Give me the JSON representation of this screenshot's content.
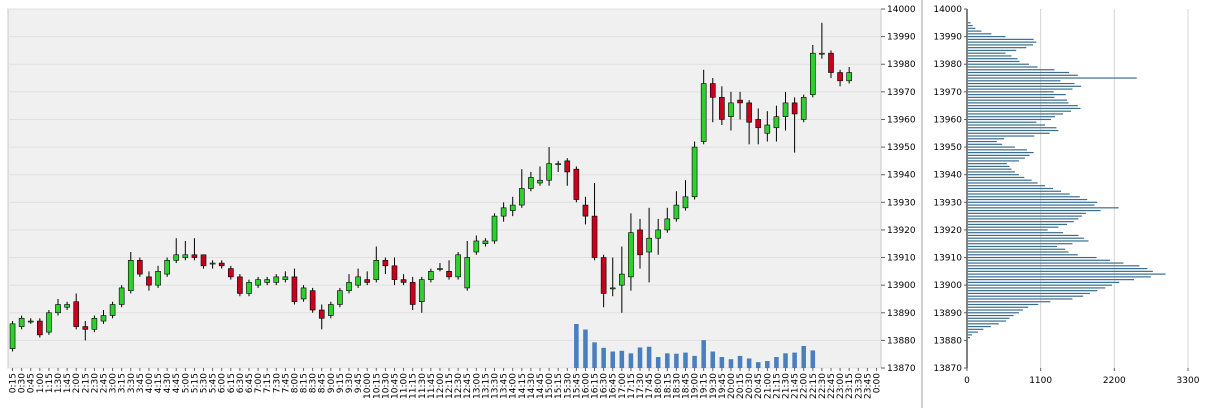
{
  "colors": {
    "up": "#2fcf2f",
    "down": "#c8001e",
    "volume": "#4a7fbf",
    "profile": "#3a6e8f",
    "plot_bg": "#f0f0f0",
    "grid": "#e0e0e0"
  },
  "chart_data": [
    {
      "type": "candlestick",
      "interval_minutes": 15,
      "ylim": [
        13870,
        14000
      ],
      "y_ticks": [
        13870,
        13880,
        13890,
        13900,
        13910,
        13920,
        13930,
        13940,
        13950,
        13960,
        13970,
        13980,
        13990,
        14000
      ],
      "x_tick_labels": [
        "0:15",
        "0:30",
        "0:45",
        "1:00",
        "1:15",
        "1:30",
        "1:45",
        "2:00",
        "2:15",
        "2:30",
        "2:45",
        "3:00",
        "3:15",
        "3:30",
        "3:45",
        "4:00",
        "4:15",
        "4:30",
        "4:45",
        "5:00",
        "5:15",
        "5:30",
        "5:45",
        "6:00",
        "6:15",
        "6:30",
        "6:45",
        "7:00",
        "7:15",
        "7:30",
        "7:45",
        "8:00",
        "8:15",
        "8:30",
        "8:45",
        "9:00",
        "9:15",
        "9:30",
        "9:45",
        "10:00",
        "10:15",
        "10:30",
        "10:45",
        "11:00",
        "11:15",
        "11:30",
        "11:45",
        "12:00",
        "12:15",
        "12:30",
        "12:45",
        "13:00",
        "13:15",
        "13:30",
        "13:45",
        "14:00",
        "14:15",
        "14:30",
        "14:45",
        "15:00",
        "15:15",
        "15:30",
        "15:45",
        "16:00",
        "16:15",
        "16:30",
        "16:45",
        "17:00",
        "17:15",
        "17:30",
        "17:45",
        "18:00",
        "18:15",
        "18:30",
        "18:45",
        "19:00",
        "19:15",
        "19:30",
        "19:45",
        "20:00",
        "20:15",
        "20:30",
        "20:45",
        "21:00",
        "21:15",
        "21:30",
        "21:45",
        "22:00",
        "22:15",
        "22:30",
        "22:45",
        "23:00",
        "23:15",
        "23:30",
        "23:45",
        "0:00"
      ],
      "candles": [
        {
          "t": "0:15",
          "o": 13877,
          "h": 13887,
          "l": 13876,
          "c": 13886,
          "v": 0
        },
        {
          "t": "0:30",
          "o": 13885,
          "h": 13889,
          "l": 13884,
          "c": 13888,
          "v": 0
        },
        {
          "t": "0:45",
          "o": 13887,
          "h": 13888,
          "l": 13886,
          "c": 13887,
          "v": 0
        },
        {
          "t": "1:00",
          "o": 13887,
          "h": 13888,
          "l": 13881,
          "c": 13882,
          "v": 0
        },
        {
          "t": "1:15",
          "o": 13883,
          "h": 13891,
          "l": 13882,
          "c": 13890,
          "v": 0
        },
        {
          "t": "1:30",
          "o": 13890,
          "h": 13895,
          "l": 13889,
          "c": 13893,
          "v": 0
        },
        {
          "t": "1:45",
          "o": 13892,
          "h": 13894,
          "l": 13891,
          "c": 13893,
          "v": 0
        },
        {
          "t": "2:00",
          "o": 13894,
          "h": 13897,
          "l": 13884,
          "c": 13885,
          "v": 0
        },
        {
          "t": "2:15",
          "o": 13885,
          "h": 13887,
          "l": 13880,
          "c": 13884,
          "v": 0
        },
        {
          "t": "2:30",
          "o": 13884,
          "h": 13889,
          "l": 13883,
          "c": 13888,
          "v": 0
        },
        {
          "t": "2:45",
          "o": 13887,
          "h": 13891,
          "l": 13886,
          "c": 13889,
          "v": 0
        },
        {
          "t": "3:00",
          "o": 13889,
          "h": 13894,
          "l": 13888,
          "c": 13893,
          "v": 0
        },
        {
          "t": "3:15",
          "o": 13893,
          "h": 13900,
          "l": 13892,
          "c": 13899,
          "v": 0
        },
        {
          "t": "3:30",
          "o": 13898,
          "h": 13912,
          "l": 13897,
          "c": 13909,
          "v": 0
        },
        {
          "t": "3:45",
          "o": 13909,
          "h": 13910,
          "l": 13903,
          "c": 13904,
          "v": 0
        },
        {
          "t": "4:00",
          "o": 13903,
          "h": 13905,
          "l": 13898,
          "c": 13900,
          "v": 0
        },
        {
          "t": "4:15",
          "o": 13900,
          "h": 13907,
          "l": 13899,
          "c": 13905,
          "v": 0
        },
        {
          "t": "4:30",
          "o": 13904,
          "h": 13910,
          "l": 13903,
          "c": 13909,
          "v": 0
        },
        {
          "t": "4:45",
          "o": 13909,
          "h": 13917,
          "l": 13908,
          "c": 13911,
          "v": 0
        },
        {
          "t": "5:00",
          "o": 13910,
          "h": 13916,
          "l": 13909,
          "c": 13911,
          "v": 0
        },
        {
          "t": "5:15",
          "o": 13911,
          "h": 13917,
          "l": 13909,
          "c": 13910,
          "v": 0
        },
        {
          "t": "5:30",
          "o": 13911,
          "h": 13911,
          "l": 13906,
          "c": 13907,
          "v": 0
        },
        {
          "t": "5:45",
          "o": 13908,
          "h": 13909,
          "l": 13906,
          "c": 13908,
          "v": 0
        },
        {
          "t": "6:00",
          "o": 13908,
          "h": 13909,
          "l": 13906,
          "c": 13907,
          "v": 0
        },
        {
          "t": "6:15",
          "o": 13906,
          "h": 13907,
          "l": 13902,
          "c": 13903,
          "v": 0
        },
        {
          "t": "6:30",
          "o": 13903,
          "h": 13904,
          "l": 13896,
          "c": 13897,
          "v": 0
        },
        {
          "t": "6:45",
          "o": 13897,
          "h": 13902,
          "l": 13896,
          "c": 13901,
          "v": 0
        },
        {
          "t": "7:00",
          "o": 13900,
          "h": 13903,
          "l": 13899,
          "c": 13902,
          "v": 0
        },
        {
          "t": "7:15",
          "o": 13901,
          "h": 13903,
          "l": 13900,
          "c": 13902,
          "v": 0
        },
        {
          "t": "7:30",
          "o": 13901,
          "h": 13904,
          "l": 13900,
          "c": 13903,
          "v": 0
        },
        {
          "t": "7:45",
          "o": 13902,
          "h": 13905,
          "l": 13901,
          "c": 13903,
          "v": 0
        },
        {
          "t": "8:00",
          "o": 13903,
          "h": 13906,
          "l": 13893,
          "c": 13894,
          "v": 0
        },
        {
          "t": "8:15",
          "o": 13895,
          "h": 13900,
          "l": 13894,
          "c": 13899,
          "v": 0
        },
        {
          "t": "8:30",
          "o": 13898,
          "h": 13899,
          "l": 13890,
          "c": 13891,
          "v": 0
        },
        {
          "t": "8:45",
          "o": 13891,
          "h": 13893,
          "l": 13884,
          "c": 13888,
          "v": 0
        },
        {
          "t": "9:00",
          "o": 13889,
          "h": 13894,
          "l": 13888,
          "c": 13893,
          "v": 0
        },
        {
          "t": "9:15",
          "o": 13893,
          "h": 13899,
          "l": 13892,
          "c": 13898,
          "v": 0
        },
        {
          "t": "9:30",
          "o": 13898,
          "h": 13904,
          "l": 13897,
          "c": 13901,
          "v": 0
        },
        {
          "t": "9:45",
          "o": 13900,
          "h": 13906,
          "l": 13899,
          "c": 13903,
          "v": 0
        },
        {
          "t": "10:00",
          "o": 13902,
          "h": 13905,
          "l": 13900,
          "c": 13901,
          "v": 0
        },
        {
          "t": "10:15",
          "o": 13902,
          "h": 13914,
          "l": 13901,
          "c": 13909,
          "v": 0
        },
        {
          "t": "10:30",
          "o": 13909,
          "h": 13910,
          "l": 13904,
          "c": 13907,
          "v": 0
        },
        {
          "t": "10:45",
          "o": 13907,
          "h": 13910,
          "l": 13900,
          "c": 13902,
          "v": 0
        },
        {
          "t": "11:00",
          "o": 13902,
          "h": 13904,
          "l": 13900,
          "c": 13901,
          "v": 0
        },
        {
          "t": "11:15",
          "o": 13901,
          "h": 13903,
          "l": 13891,
          "c": 13893,
          "v": 0
        },
        {
          "t": "11:30",
          "o": 13894,
          "h": 13903,
          "l": 13890,
          "c": 13902,
          "v": 0
        },
        {
          "t": "11:45",
          "o": 13902,
          "h": 13906,
          "l": 13901,
          "c": 13905,
          "v": 0
        },
        {
          "t": "12:00",
          "o": 13906,
          "h": 13908,
          "l": 13905,
          "c": 13906,
          "v": 0
        },
        {
          "t": "12:15",
          "o": 13905,
          "h": 13909,
          "l": 13902,
          "c": 13903,
          "v": 0
        },
        {
          "t": "12:30",
          "o": 13903,
          "h": 13912,
          "l": 13902,
          "c": 13911,
          "v": 0
        },
        {
          "t": "12:45",
          "o": 13899,
          "h": 13916,
          "l": 13898,
          "c": 13910,
          "v": 0
        },
        {
          "t": "13:00",
          "o": 13912,
          "h": 13918,
          "l": 13911,
          "c": 13916,
          "v": 0
        },
        {
          "t": "13:15",
          "o": 13915,
          "h": 13917,
          "l": 13914,
          "c": 13916,
          "v": 0
        },
        {
          "t": "13:30",
          "o": 13916,
          "h": 13926,
          "l": 13915,
          "c": 13925,
          "v": 0
        },
        {
          "t": "13:45",
          "o": 13925,
          "h": 13930,
          "l": 13923,
          "c": 13928,
          "v": 0
        },
        {
          "t": "14:00",
          "o": 13927,
          "h": 13932,
          "l": 13925,
          "c": 13929,
          "v": 0
        },
        {
          "t": "14:15",
          "o": 13929,
          "h": 13942,
          "l": 13928,
          "c": 13935,
          "v": 0
        },
        {
          "t": "14:30",
          "o": 13935,
          "h": 13941,
          "l": 13934,
          "c": 13939,
          "v": 0
        },
        {
          "t": "14:45",
          "o": 13937,
          "h": 13943,
          "l": 13936,
          "c": 13938,
          "v": 0
        },
        {
          "t": "15:00",
          "o": 13938,
          "h": 13950,
          "l": 13936,
          "c": 13944,
          "v": 0
        },
        {
          "t": "15:15",
          "o": 13944,
          "h": 13945,
          "l": 13941,
          "c": 13944,
          "v": 0
        },
        {
          "t": "15:30",
          "o": 13945,
          "h": 13946,
          "l": 13936,
          "c": 13941,
          "v": 0
        },
        {
          "t": "15:45",
          "o": 13942,
          "h": 13943,
          "l": 13930,
          "c": 13931,
          "v": 1200
        },
        {
          "t": "16:00",
          "o": 13929,
          "h": 13932,
          "l": 13922,
          "c": 13925,
          "v": 1050
        },
        {
          "t": "16:15",
          "o": 13925,
          "h": 13937,
          "l": 13909,
          "c": 13910,
          "v": 700
        },
        {
          "t": "16:30",
          "o": 13910,
          "h": 13911,
          "l": 13892,
          "c": 13897,
          "v": 550
        },
        {
          "t": "16:45",
          "o": 13899,
          "h": 13910,
          "l": 13896,
          "c": 13899,
          "v": 450
        },
        {
          "t": "17:00",
          "o": 13900,
          "h": 13914,
          "l": 13890,
          "c": 13904,
          "v": 470
        },
        {
          "t": "17:15",
          "o": 13903,
          "h": 13926,
          "l": 13898,
          "c": 13919,
          "v": 400
        },
        {
          "t": "17:30",
          "o": 13920,
          "h": 13924,
          "l": 13906,
          "c": 13911,
          "v": 560
        },
        {
          "t": "17:45",
          "o": 13912,
          "h": 13928,
          "l": 13901,
          "c": 13917,
          "v": 580
        },
        {
          "t": "18:00",
          "o": 13917,
          "h": 13924,
          "l": 13911,
          "c": 13920,
          "v": 300
        },
        {
          "t": "18:15",
          "o": 13920,
          "h": 13928,
          "l": 13919,
          "c": 13924,
          "v": 400
        },
        {
          "t": "18:30",
          "o": 13924,
          "h": 13934,
          "l": 13923,
          "c": 13929,
          "v": 390
        },
        {
          "t": "18:45",
          "o": 13928,
          "h": 13938,
          "l": 13927,
          "c": 13932,
          "v": 420
        },
        {
          "t": "19:00",
          "o": 13932,
          "h": 13952,
          "l": 13931,
          "c": 13950,
          "v": 330
        },
        {
          "t": "19:15",
          "o": 13952,
          "h": 13978,
          "l": 13951,
          "c": 13973,
          "v": 760
        },
        {
          "t": "19:30",
          "o": 13973,
          "h": 13975,
          "l": 13959,
          "c": 13968,
          "v": 450
        },
        {
          "t": "19:45",
          "o": 13968,
          "h": 13972,
          "l": 13958,
          "c": 13960,
          "v": 300
        },
        {
          "t": "20:00",
          "o": 13961,
          "h": 13970,
          "l": 13956,
          "c": 13966,
          "v": 240
        },
        {
          "t": "20:15",
          "o": 13967,
          "h": 13970,
          "l": 13960,
          "c": 13966,
          "v": 330
        },
        {
          "t": "20:30",
          "o": 13966,
          "h": 13967,
          "l": 13951,
          "c": 13959,
          "v": 260
        },
        {
          "t": "20:45",
          "o": 13960,
          "h": 13964,
          "l": 13951,
          "c": 13957,
          "v": 160
        },
        {
          "t": "21:00",
          "o": 13955,
          "h": 13963,
          "l": 13952,
          "c": 13958,
          "v": 190
        },
        {
          "t": "21:15",
          "o": 13957,
          "h": 13965,
          "l": 13952,
          "c": 13961,
          "v": 300
        },
        {
          "t": "21:30",
          "o": 13961,
          "h": 13970,
          "l": 13956,
          "c": 13966,
          "v": 400
        },
        {
          "t": "21:45",
          "o": 13966,
          "h": 13968,
          "l": 13948,
          "c": 13962,
          "v": 420
        },
        {
          "t": "22:00",
          "o": 13960,
          "h": 13969,
          "l": 13959,
          "c": 13968,
          "v": 600
        },
        {
          "t": "22:15",
          "o": 13969,
          "h": 13987,
          "l": 13968,
          "c": 13984,
          "v": 480
        },
        {
          "t": "22:30",
          "o": 13984,
          "h": 13995,
          "l": 13982,
          "c": 13984,
          "v": 0
        },
        {
          "t": "22:45",
          "o": 13984,
          "h": 13985,
          "l": 13975,
          "c": 13977,
          "v": 0
        },
        {
          "t": "23:00",
          "o": 13977,
          "h": 13978,
          "l": 13972,
          "c": 13974,
          "v": 0
        },
        {
          "t": "23:15",
          "o": 13974,
          "h": 13979,
          "l": 13973,
          "c": 13977,
          "v": 0
        }
      ]
    },
    {
      "type": "bar",
      "orientation": "horizontal",
      "xlim": [
        0,
        3300
      ],
      "x_ticks": [
        0,
        1100,
        2200,
        3300
      ],
      "ylim": [
        13870,
        14000
      ],
      "y_ticks": [
        13870,
        13880,
        13890,
        13900,
        13910,
        13920,
        13930,
        13940,
        13950,
        13960,
        13970,
        13980,
        13990,
        14000
      ],
      "y": [
        13881,
        13882,
        13883,
        13884,
        13885,
        13886,
        13887,
        13888,
        13889,
        13890,
        13891,
        13892,
        13893,
        13894,
        13895,
        13896,
        13897,
        13898,
        13899,
        13900,
        13901,
        13902,
        13903,
        13904,
        13905,
        13906,
        13907,
        13908,
        13909,
        13910,
        13911,
        13912,
        13913,
        13914,
        13915,
        13916,
        13917,
        13918,
        13919,
        13920,
        13921,
        13922,
        13923,
        13924,
        13925,
        13926,
        13927,
        13928,
        13929,
        13930,
        13931,
        13932,
        13933,
        13934,
        13935,
        13936,
        13937,
        13938,
        13939,
        13940,
        13941,
        13942,
        13943,
        13944,
        13945,
        13946,
        13947,
        13948,
        13949,
        13950,
        13951,
        13952,
        13953,
        13954,
        13955,
        13956,
        13957,
        13958,
        13959,
        13960,
        13961,
        13962,
        13963,
        13964,
        13965,
        13966,
        13967,
        13968,
        13969,
        13970,
        13971,
        13972,
        13973,
        13974,
        13975,
        13976,
        13977,
        13978,
        13979,
        13980,
        13981,
        13982,
        13983,
        13984,
        13985,
        13986,
        13987,
        13988,
        13989,
        13990,
        13991,
        13992,
        13993,
        13994,
        13995
      ],
      "values": [
        30,
        60,
        150,
        230,
        340,
        460,
        570,
        620,
        680,
        760,
        820,
        900,
        1050,
        1230,
        1560,
        1720,
        1820,
        1930,
        2050,
        2150,
        2260,
        2480,
        2730,
        2950,
        2760,
        2680,
        2560,
        2320,
        2120,
        1920,
        1640,
        1500,
        1450,
        1330,
        1560,
        1800,
        1730,
        1650,
        1420,
        1190,
        1350,
        1480,
        1580,
        1650,
        1700,
        1760,
        1980,
        2250,
        1890,
        1930,
        1780,
        1670,
        1520,
        1390,
        1270,
        1150,
        1040,
        950,
        840,
        760,
        700,
        650,
        620,
        580,
        760,
        850,
        920,
        980,
        880,
        700,
        510,
        430,
        540,
        990,
        1220,
        1350,
        1320,
        1150,
        1020,
        1240,
        1300,
        1420,
        1540,
        1680,
        1640,
        1500,
        1480,
        1290,
        1460,
        1280,
        1560,
        1690,
        1590,
        1380,
        2520,
        1640,
        1510,
        1290,
        1040,
        910,
        770,
        740,
        650,
        560,
        720,
        870,
        970,
        1020,
        980,
        560,
        350,
        200,
        110,
        70,
        40
      ]
    }
  ]
}
